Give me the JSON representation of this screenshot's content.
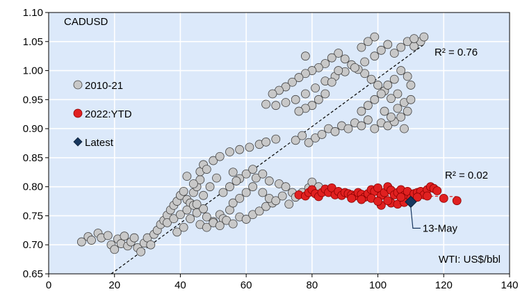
{
  "chart_data": {
    "type": "scatter",
    "title": "CADUSD",
    "xlabel": "WTI: US$/bbl",
    "ylabel": "",
    "xlim": [
      0,
      140
    ],
    "ylim": [
      0.65,
      1.1
    ],
    "xticks": [
      "0",
      "20",
      "40",
      "60",
      "80",
      "100",
      "120",
      "140"
    ],
    "yticks": [
      "0.65",
      "0.70",
      "0.75",
      "0.80",
      "0.85",
      "0.90",
      "0.95",
      "1.00",
      "1.05",
      "1.10"
    ],
    "grid": true,
    "background": "#dce9fa",
    "legend_position": "left",
    "series": [
      {
        "name": "2010-21",
        "marker": "circle",
        "color": "#c8c8c8",
        "edge_color": "#404040",
        "trend": {
          "r2_label": "R² = 0.76",
          "x": [
            19,
            114
          ],
          "y": [
            0.65,
            1.045
          ],
          "color": "#000000"
        },
        "points": [
          [
            10,
            0.705
          ],
          [
            12,
            0.714
          ],
          [
            13,
            0.708
          ],
          [
            15,
            0.72
          ],
          [
            16,
            0.712
          ],
          [
            18,
            0.716
          ],
          [
            19,
            0.7
          ],
          [
            20,
            0.692
          ],
          [
            21,
            0.71
          ],
          [
            22,
            0.702
          ],
          [
            23,
            0.715
          ],
          [
            24,
            0.698
          ],
          [
            25,
            0.705
          ],
          [
            26,
            0.712
          ],
          [
            27,
            0.695
          ],
          [
            28,
            0.688
          ],
          [
            29,
            0.703
          ],
          [
            30,
            0.712
          ],
          [
            31,
            0.7
          ],
          [
            32,
            0.718
          ],
          [
            33,
            0.725
          ],
          [
            34,
            0.735
          ],
          [
            35,
            0.742
          ],
          [
            36,
            0.751
          ],
          [
            37,
            0.76
          ],
          [
            38,
            0.768
          ],
          [
            39,
            0.775
          ],
          [
            40,
            0.785
          ],
          [
            41,
            0.792
          ],
          [
            42,
            0.778
          ],
          [
            43,
            0.772
          ],
          [
            44,
            0.79
          ],
          [
            45,
            0.8
          ],
          [
            46,
            0.812
          ],
          [
            46,
            0.826
          ],
          [
            47,
            0.838
          ],
          [
            48,
            0.83
          ],
          [
            50,
            0.845
          ],
          [
            52,
            0.852
          ],
          [
            55,
            0.86
          ],
          [
            58,
            0.864
          ],
          [
            61,
            0.868
          ],
          [
            64,
            0.873
          ],
          [
            66,
            0.877
          ],
          [
            69,
            0.882
          ],
          [
            36,
            0.738
          ],
          [
            38,
            0.745
          ],
          [
            40,
            0.752
          ],
          [
            42,
            0.76
          ],
          [
            44,
            0.768
          ],
          [
            45,
            0.755
          ],
          [
            47,
            0.762
          ],
          [
            48,
            0.748
          ],
          [
            50,
            0.74
          ],
          [
            52,
            0.752
          ],
          [
            53,
            0.745
          ],
          [
            55,
            0.76
          ],
          [
            56,
            0.772
          ],
          [
            58,
            0.78
          ],
          [
            60,
            0.79
          ],
          [
            62,
            0.8
          ],
          [
            63,
            0.815
          ],
          [
            60,
            0.822
          ],
          [
            58,
            0.814
          ],
          [
            62,
            0.83
          ],
          [
            65,
            0.822
          ],
          [
            67,
            0.81
          ],
          [
            70,
            0.805
          ],
          [
            72,
            0.8
          ],
          [
            74,
            0.79
          ],
          [
            75,
            0.782
          ],
          [
            77,
            0.79
          ],
          [
            79,
            0.798
          ],
          [
            80,
            0.808
          ],
          [
            82,
            0.8
          ],
          [
            46,
            0.735
          ],
          [
            48,
            0.73
          ],
          [
            50,
            0.738
          ],
          [
            52,
            0.733
          ],
          [
            54,
            0.742
          ],
          [
            56,
            0.736
          ],
          [
            58,
            0.748
          ],
          [
            60,
            0.744
          ],
          [
            62,
            0.752
          ],
          [
            64,
            0.758
          ],
          [
            66,
            0.766
          ],
          [
            68,
            0.772
          ],
          [
            53,
            0.79
          ],
          [
            55,
            0.8
          ],
          [
            57,
            0.81
          ],
          [
            65,
            0.79
          ],
          [
            67,
            0.78
          ],
          [
            69,
            0.776
          ],
          [
            71,
            0.784
          ],
          [
            73,
            0.77
          ],
          [
            39,
            0.722
          ],
          [
            41,
            0.73
          ],
          [
            43,
            0.745
          ],
          [
            45,
            0.77
          ],
          [
            47,
            0.785
          ],
          [
            49,
            0.8
          ],
          [
            51,
            0.815
          ],
          [
            44,
            0.805
          ],
          [
            42,
            0.818
          ],
          [
            56,
            0.825
          ],
          [
            75,
            0.88
          ],
          [
            77,
            0.888
          ],
          [
            79,
            0.876
          ],
          [
            81,
            0.884
          ],
          [
            83,
            0.89
          ],
          [
            85,
            0.9
          ],
          [
            87,
            0.895
          ],
          [
            89,
            0.905
          ],
          [
            91,
            0.9
          ],
          [
            93,
            0.91
          ],
          [
            95,
            0.905
          ],
          [
            97,
            0.915
          ],
          [
            99,
            0.9
          ],
          [
            101,
            0.91
          ],
          [
            103,
            0.905
          ],
          [
            105,
            0.912
          ],
          [
            107,
            0.92
          ],
          [
            109,
            0.93
          ],
          [
            108,
            0.945
          ],
          [
            106,
            0.96
          ],
          [
            104,
            0.952
          ],
          [
            102,
            0.965
          ],
          [
            100,
            0.975
          ],
          [
            98,
            0.985
          ],
          [
            96,
            0.995
          ],
          [
            94,
            1.002
          ],
          [
            92,
            1.01
          ],
          [
            90,
            1.02
          ],
          [
            88,
            1.03
          ],
          [
            86,
            1.022
          ],
          [
            84,
            1.012
          ],
          [
            82,
            1.005
          ],
          [
            80,
            1.0
          ],
          [
            78,
            0.995
          ],
          [
            76,
            0.988
          ],
          [
            74,
            0.98
          ],
          [
            72,
            0.972
          ],
          [
            70,
            0.966
          ],
          [
            68,
            0.96
          ],
          [
            66,
            0.942
          ],
          [
            69,
            0.94
          ],
          [
            72,
            0.945
          ],
          [
            75,
            0.95
          ],
          [
            78,
            0.96
          ],
          [
            81,
            0.97
          ],
          [
            84,
            0.982
          ],
          [
            87,
            0.99
          ],
          [
            90,
            0.998
          ],
          [
            93,
            1.005
          ],
          [
            96,
            1.015
          ],
          [
            99,
            1.025
          ],
          [
            101,
            1.035
          ],
          [
            103,
            1.045
          ],
          [
            105,
            1.03
          ],
          [
            107,
            1.04
          ],
          [
            109,
            1.05
          ],
          [
            111,
            1.042
          ],
          [
            113,
            1.05
          ],
          [
            114,
            1.058
          ],
          [
            111,
            1.055
          ],
          [
            99,
            1.058
          ],
          [
            97,
            1.05
          ],
          [
            95,
            1.04
          ],
          [
            88,
            1.0
          ],
          [
            86,
            0.98
          ],
          [
            84,
            0.96
          ],
          [
            82,
            0.95
          ],
          [
            80,
            0.94
          ],
          [
            78,
            0.935
          ],
          [
            76,
            0.93
          ],
          [
            78,
            1.025
          ],
          [
            102,
            0.93
          ],
          [
            104,
            0.92
          ],
          [
            106,
            0.935
          ],
          [
            108,
            0.9
          ],
          [
            110,
            0.95
          ],
          [
            110,
            0.975
          ],
          [
            109,
            0.99
          ],
          [
            107,
            1.0
          ],
          [
            105,
            0.985
          ],
          [
            103,
            0.975
          ],
          [
            101,
            0.96
          ],
          [
            99,
            0.95
          ],
          [
            97,
            0.94
          ],
          [
            95,
            0.93
          ]
        ]
      },
      {
        "name": "2022:YTD",
        "marker": "circle",
        "color": "#e02020",
        "edge_color": "#8a0000",
        "trend": {
          "r2_label": "R² = 0.02",
          "x": [
            76,
            124
          ],
          "y": [
            0.787,
            0.783
          ],
          "color": "#e02020"
        },
        "points": [
          [
            76,
            0.786
          ],
          [
            78,
            0.784
          ],
          [
            79,
            0.79
          ],
          [
            80,
            0.795
          ],
          [
            81,
            0.788
          ],
          [
            82,
            0.783
          ],
          [
            83,
            0.79
          ],
          [
            84,
            0.796
          ],
          [
            85,
            0.79
          ],
          [
            86,
            0.798
          ],
          [
            87,
            0.786
          ],
          [
            88,
            0.792
          ],
          [
            89,
            0.785
          ],
          [
            90,
            0.79
          ],
          [
            91,
            0.788
          ],
          [
            92,
            0.786
          ],
          [
            93,
            0.784
          ],
          [
            94,
            0.79
          ],
          [
            95,
            0.787
          ],
          [
            96,
            0.782
          ],
          [
            97,
            0.788
          ],
          [
            98,
            0.795
          ],
          [
            99,
            0.792
          ],
          [
            100,
            0.798
          ],
          [
            101,
            0.785
          ],
          [
            102,
            0.79
          ],
          [
            103,
            0.8
          ],
          [
            104,
            0.794
          ],
          [
            105,
            0.786
          ],
          [
            106,
            0.79
          ],
          [
            107,
            0.795
          ],
          [
            108,
            0.785
          ],
          [
            109,
            0.792
          ],
          [
            110,
            0.78
          ],
          [
            111,
            0.788
          ],
          [
            112,
            0.79
          ],
          [
            113,
            0.792
          ],
          [
            114,
            0.786
          ],
          [
            115,
            0.795
          ],
          [
            116,
            0.8
          ],
          [
            117,
            0.797
          ],
          [
            118,
            0.793
          ],
          [
            120,
            0.78
          ],
          [
            124,
            0.776
          ],
          [
            101,
            0.768
          ],
          [
            104,
            0.772
          ],
          [
            106,
            0.77
          ],
          [
            108,
            0.773
          ],
          [
            112,
            0.782
          ],
          [
            98,
            0.78
          ],
          [
            95,
            0.778
          ],
          [
            92,
            0.78
          ],
          [
            100,
            0.775
          ],
          [
            103,
            0.776
          ],
          [
            115,
            0.784
          ],
          [
            107,
            0.782
          ]
        ]
      },
      {
        "name": "Latest",
        "marker": "diamond",
        "color": "#17375e",
        "edge_color": "#0c1f36",
        "points": [
          [
            110,
            0.774
          ]
        ]
      }
    ],
    "annotations": [
      {
        "text": "13-May",
        "target_x": 110,
        "target_y": 0.774,
        "color": "#17375e"
      }
    ]
  }
}
